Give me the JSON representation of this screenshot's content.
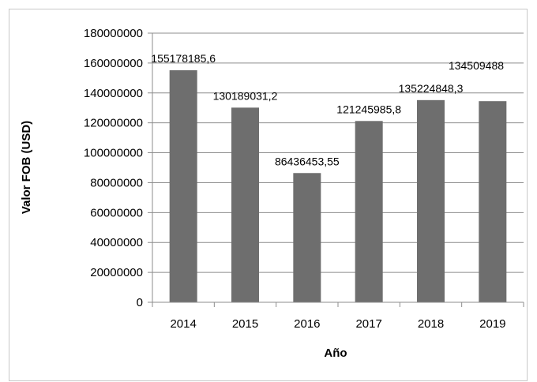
{
  "chart_data": {
    "type": "bar",
    "categories": [
      "2014",
      "2015",
      "2016",
      "2017",
      "2018",
      "2019"
    ],
    "values": [
      155178185.6,
      130189031.2,
      86436453.55,
      121245985.8,
      135224848.3,
      134509488
    ],
    "data_labels": [
      "155178185,6",
      "130189031,2",
      "86436453,55",
      "121245985,8",
      "135224848,3",
      "134509488"
    ],
    "xlabel": "Año",
    "ylabel": "Valor FOB (USD)",
    "ylim": [
      0,
      180000000
    ],
    "yticks": [
      "0",
      "20000000",
      "40000000",
      "60000000",
      "80000000",
      "100000000",
      "120000000",
      "140000000",
      "160000000",
      "180000000"
    ],
    "grid": true,
    "bar_color": "#6e6e6e",
    "grid_color": "#8c8c8c"
  }
}
